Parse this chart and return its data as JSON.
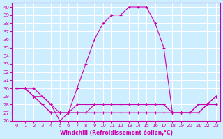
{
  "xlabel": "Windchill (Refroidissement éolien,°C)",
  "bg_color": "#cceeff",
  "grid_color": "#ffffff",
  "line_color": "#cc00aa",
  "xlim": [
    -0.5,
    23.5
  ],
  "ylim": [
    26,
    40.5
  ],
  "yticks": [
    26,
    27,
    28,
    29,
    30,
    31,
    32,
    33,
    34,
    35,
    36,
    37,
    38,
    39,
    40
  ],
  "xticks": [
    0,
    1,
    2,
    3,
    4,
    5,
    6,
    7,
    8,
    9,
    10,
    11,
    12,
    13,
    14,
    15,
    16,
    17,
    18,
    19,
    20,
    21,
    22,
    23
  ],
  "series": [
    [
      30,
      30,
      30,
      29,
      28,
      26,
      27,
      30,
      33,
      36,
      38,
      39,
      39,
      40,
      40,
      40,
      38,
      35,
      27,
      27,
      27,
      28,
      28,
      29
    ],
    [
      30,
      30,
      29,
      29,
      28,
      27,
      27,
      28,
      28,
      28,
      28,
      28,
      28,
      28,
      28,
      28,
      28,
      28,
      27,
      27,
      27,
      28,
      28,
      29
    ],
    [
      30,
      30,
      29,
      28,
      27,
      27,
      27,
      27,
      27,
      28,
      28,
      28,
      28,
      28,
      28,
      28,
      28,
      28,
      27,
      27,
      27,
      27,
      28,
      28
    ],
    [
      30,
      30,
      29,
      28,
      27,
      27,
      27,
      27,
      27,
      27,
      27,
      27,
      27,
      27,
      27,
      27,
      27,
      27,
      27,
      27,
      27,
      27,
      28,
      28
    ]
  ]
}
